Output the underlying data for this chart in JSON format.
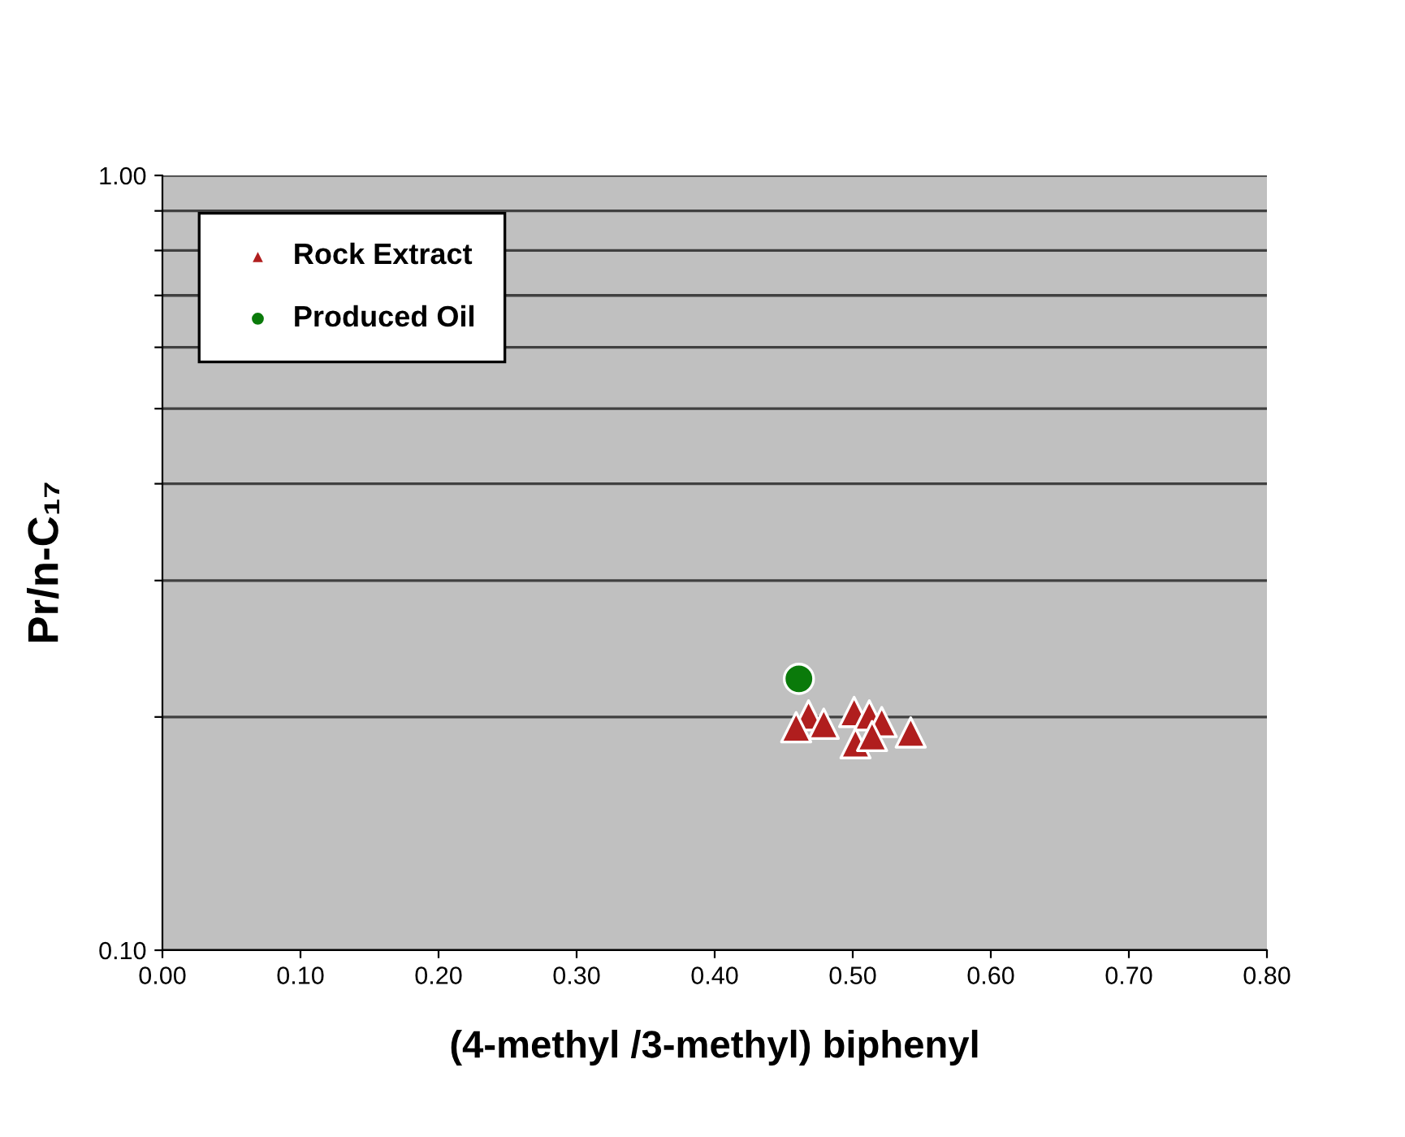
{
  "chart_data": {
    "type": "scatter",
    "xlabel": "(4-methyl /3-methyl) biphenyl",
    "ylabel": "Pr/n-C₁₇",
    "series": [
      {
        "name": "Rock Extract",
        "color": "#b01e1e",
        "marker": "triangle",
        "x": [
          0.468,
          0.479,
          0.459,
          0.501,
          0.512,
          0.521,
          0.502,
          0.514,
          0.542
        ],
        "values": [
          0.201,
          0.196,
          0.194,
          0.203,
          0.201,
          0.197,
          0.185,
          0.189,
          0.191
        ]
      },
      {
        "name": "Produced Oil",
        "color": "#0a7a0a",
        "marker": "circle",
        "x": [
          0.461
        ],
        "values": [
          0.224
        ]
      }
    ],
    "log": "y",
    "xlim": [
      0,
      0.8
    ],
    "ylim": [
      0.1,
      1.0
    ],
    "xticks": [
      {
        "value": 0,
        "label": "0.00"
      },
      {
        "value": 0.1,
        "label": "0.10"
      },
      {
        "value": 0.2,
        "label": "0.20"
      },
      {
        "value": 0.3,
        "label": "0.30"
      },
      {
        "value": 0.4,
        "label": "0.40"
      },
      {
        "value": 0.5,
        "label": "0.50"
      },
      {
        "value": 0.6,
        "label": "0.60"
      },
      {
        "value": 0.7,
        "label": "0.70"
      },
      {
        "value": 0.8,
        "label": "0.80"
      }
    ],
    "yticks": [
      {
        "value": 0.1,
        "label": "0.10"
      },
      {
        "value": 0.2,
        "label": null
      },
      {
        "value": 0.3,
        "label": null
      },
      {
        "value": 0.4,
        "label": null
      },
      {
        "value": 0.5,
        "label": null
      },
      {
        "value": 0.6,
        "label": null
      },
      {
        "value": 0.7,
        "label": null
      },
      {
        "value": 0.8,
        "label": null
      },
      {
        "value": 0.9,
        "label": null
      },
      {
        "value": 1.0,
        "label": "1.00"
      }
    ],
    "grid": "y",
    "legend": "top left"
  }
}
